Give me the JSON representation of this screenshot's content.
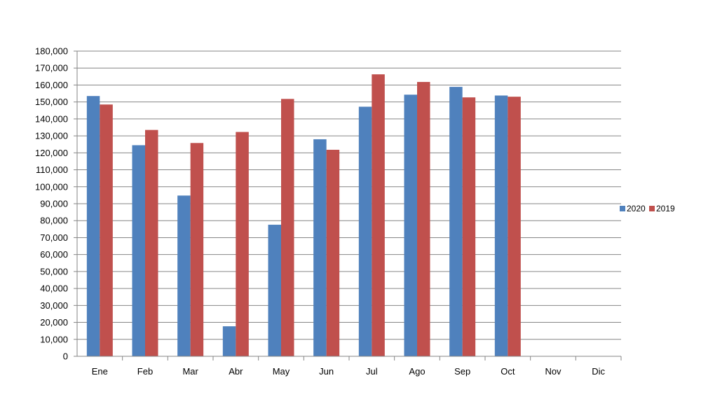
{
  "chart_data": {
    "type": "bar",
    "title": "",
    "xlabel": "",
    "ylabel": "",
    "categories": [
      "Ene",
      "Feb",
      "Mar",
      "Abr",
      "May",
      "Jun",
      "Jul",
      "Ago",
      "Sep",
      "Oct",
      "Nov",
      "Dic"
    ],
    "series": [
      {
        "name": "2020",
        "color": "#4f81bd",
        "values": [
          153500,
          124500,
          94800,
          17700,
          77600,
          128000,
          147200,
          154300,
          158900,
          153800,
          null,
          null
        ]
      },
      {
        "name": "2019",
        "color": "#c0504d",
        "values": [
          148500,
          133500,
          125800,
          132300,
          151800,
          121800,
          166300,
          161800,
          152700,
          153100,
          null,
          null
        ]
      }
    ],
    "ylim": [
      0,
      180000
    ],
    "ytick_step": 10000,
    "ytick_labels": [
      "0",
      "10,000",
      "20,000",
      "30,000",
      "40,000",
      "50,000",
      "60,000",
      "70,000",
      "80,000",
      "90,000",
      "100,000",
      "110,000",
      "120,000",
      "130,000",
      "140,000",
      "150,000",
      "160,000",
      "170,000",
      "180,000"
    ],
    "grid": true,
    "legend_position": "right"
  }
}
